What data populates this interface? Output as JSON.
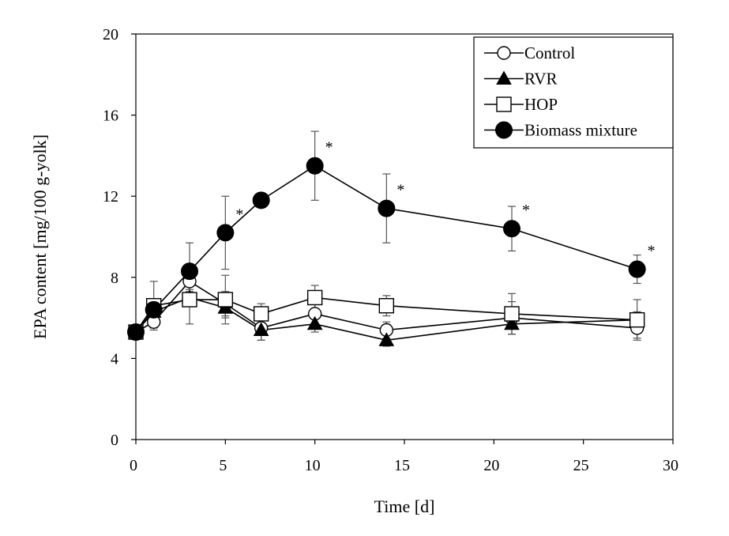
{
  "chart_data": {
    "type": "line",
    "xlabel": "Time [d]",
    "ylabel": "EPA content [mg/100 g-yolk]",
    "xlim": [
      0,
      30
    ],
    "ylim": [
      0,
      20
    ],
    "xticks": [
      0,
      5,
      10,
      15,
      20,
      25,
      30
    ],
    "yticks": [
      0,
      4,
      8,
      12,
      16,
      20
    ],
    "grid": false,
    "legend_position": "top-right",
    "series": [
      {
        "name": "Control",
        "marker": "circle-open",
        "x": [
          0,
          1,
          3,
          5,
          7,
          10,
          14,
          21,
          28
        ],
        "y": [
          5.3,
          5.8,
          7.8,
          6.7,
          5.5,
          6.2,
          5.4,
          6.0,
          5.5
        ],
        "err": [
          0.2,
          0.3,
          0.5,
          0.6,
          0.6,
          0.5,
          0.4,
          0.8,
          0.5
        ],
        "stars": [
          false,
          false,
          false,
          false,
          false,
          false,
          false,
          false,
          false
        ]
      },
      {
        "name": "RVR",
        "marker": "triangle-filled",
        "x": [
          0,
          1,
          3,
          5,
          7,
          10,
          14,
          21,
          28
        ],
        "y": [
          5.3,
          6.3,
          7.0,
          6.5,
          5.4,
          5.7,
          4.9,
          5.7,
          5.9
        ],
        "err": [
          0.2,
          0.3,
          0.4,
          0.5,
          0.5,
          0.4,
          0.3,
          0.5,
          0.4
        ],
        "stars": [
          false,
          false,
          false,
          false,
          false,
          false,
          false,
          false,
          false
        ]
      },
      {
        "name": "HOP",
        "marker": "square-open",
        "x": [
          0,
          1,
          3,
          5,
          7,
          10,
          14,
          21,
          28
        ],
        "y": [
          5.3,
          6.6,
          6.9,
          6.9,
          6.2,
          7.0,
          6.6,
          6.2,
          5.9
        ],
        "err": [
          0.2,
          1.2,
          1.2,
          1.2,
          0.5,
          0.6,
          0.5,
          1.0,
          1.0
        ],
        "stars": [
          false,
          false,
          false,
          false,
          false,
          false,
          false,
          false,
          false
        ]
      },
      {
        "name": "Biomass mixture",
        "marker": "circle-filled",
        "x": [
          0,
          1,
          3,
          5,
          7,
          10,
          14,
          21,
          28
        ],
        "y": [
          5.3,
          6.4,
          8.3,
          10.2,
          11.8,
          13.5,
          11.4,
          10.4,
          8.4
        ],
        "err": [
          0.2,
          0.5,
          1.4,
          1.8,
          0.3,
          1.7,
          1.7,
          1.1,
          0.7
        ],
        "stars": [
          false,
          false,
          false,
          true,
          false,
          true,
          true,
          true,
          true
        ]
      }
    ],
    "annotation_symbol": "*"
  }
}
